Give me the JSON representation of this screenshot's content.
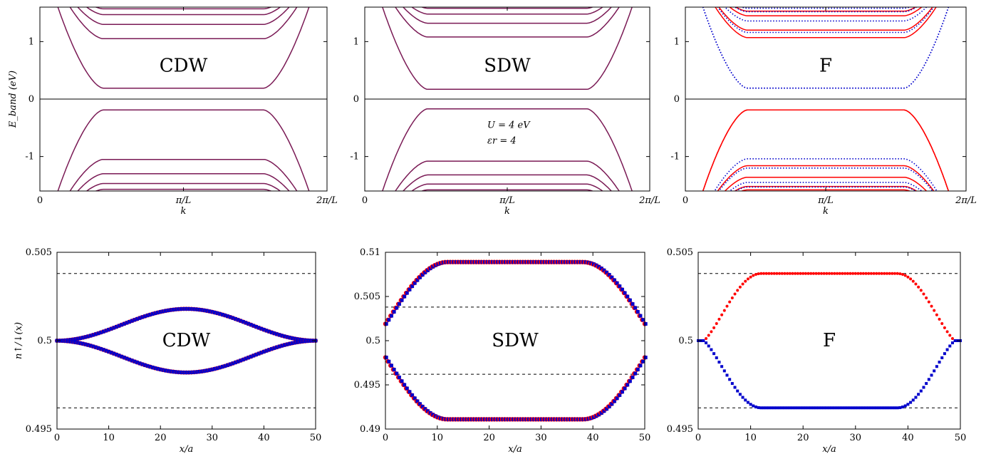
{
  "colors": {
    "red": "#ff0000",
    "blue": "#0000cc",
    "overlap": "#7a1a55",
    "axis": "#000000",
    "dashed": "#000000"
  },
  "panels": [
    {
      "id": "cdw-band",
      "chart_data": {
        "type": "line",
        "label": "CDW",
        "xlabel": "k",
        "ylabel": "E_band (eV)",
        "xticks": [
          "0",
          "π/L",
          "2π/L"
        ],
        "yticks": [
          "-1",
          "0",
          "1"
        ],
        "ylim": [
          -1.6,
          1.6
        ],
        "xlim": [
          0,
          1
        ],
        "zero_line": true,
        "series": [
          {
            "color": "overlap",
            "style": "solid",
            "bands": [
              {
                "sign": 1,
                "E": 0.19,
                "slope": 1.5
              },
              {
                "sign": 1,
                "E": 1.05,
                "slope": 1.5
              },
              {
                "sign": 1,
                "E": 1.3,
                "slope": 1.5
              },
              {
                "sign": 1,
                "E": 1.47,
                "slope": 1.5
              },
              {
                "sign": 1,
                "E": 1.57,
                "slope": 1.5
              },
              {
                "sign": -1,
                "E": 0.19,
                "slope": 1.5
              },
              {
                "sign": -1,
                "E": 1.05,
                "slope": 1.5
              },
              {
                "sign": -1,
                "E": 1.3,
                "slope": 1.5
              },
              {
                "sign": -1,
                "E": 1.47,
                "slope": 1.5
              },
              {
                "sign": -1,
                "E": 1.57,
                "slope": 1.5
              }
            ]
          }
        ]
      }
    },
    {
      "id": "sdw-band",
      "chart_data": {
        "type": "line",
        "label": "SDW",
        "annotations": [
          "U = 4 eV",
          "εr = 4"
        ],
        "xlabel": "k",
        "ylabel": "",
        "xticks": [
          "0",
          "π/L",
          "2π/L"
        ],
        "yticks": [
          "-1",
          "0",
          "1"
        ],
        "ylim": [
          -1.6,
          1.6
        ],
        "xlim": [
          0,
          1
        ],
        "zero_line": true,
        "series": [
          {
            "color": "overlap",
            "style": "solid",
            "bands": [
              {
                "sign": 1,
                "E": 0.17,
                "slope": 1.5
              },
              {
                "sign": 1,
                "E": 1.08,
                "slope": 1.5
              },
              {
                "sign": 1,
                "E": 1.32,
                "slope": 1.5
              },
              {
                "sign": 1,
                "E": 1.48,
                "slope": 1.5
              },
              {
                "sign": 1,
                "E": 1.58,
                "slope": 1.5
              },
              {
                "sign": -1,
                "E": 0.17,
                "slope": 1.5
              },
              {
                "sign": -1,
                "E": 1.08,
                "slope": 1.5
              },
              {
                "sign": -1,
                "E": 1.32,
                "slope": 1.5
              },
              {
                "sign": -1,
                "E": 1.48,
                "slope": 1.5
              },
              {
                "sign": -1,
                "E": 1.58,
                "slope": 1.5
              }
            ]
          }
        ]
      }
    },
    {
      "id": "f-band",
      "chart_data": {
        "type": "line",
        "label": "F",
        "xlabel": "k",
        "ylabel": "",
        "xticks": [
          "0",
          "π/L",
          "2π/L"
        ],
        "yticks": [
          "-1",
          "0",
          "1"
        ],
        "ylim": [
          -1.6,
          1.6
        ],
        "xlim": [
          0,
          1
        ],
        "zero_line": true,
        "series": [
          {
            "color": "red",
            "style": "solid",
            "bands": [
              {
                "sign": 1,
                "E": 1.07,
                "slope": 1.5
              },
              {
                "sign": 1,
                "E": 1.2,
                "slope": 1.5
              },
              {
                "sign": 1,
                "E": 1.45,
                "slope": 1.5
              },
              {
                "sign": 1,
                "E": 1.53,
                "slope": 1.5
              },
              {
                "sign": -1,
                "E": 0.19,
                "slope": 1.5
              },
              {
                "sign": -1,
                "E": 1.16,
                "slope": 1.5
              },
              {
                "sign": -1,
                "E": 1.36,
                "slope": 1.5
              },
              {
                "sign": -1,
                "E": 1.52,
                "slope": 1.5
              },
              {
                "sign": -1,
                "E": 1.58,
                "slope": 1.5
              },
              {
                "sign": 1,
                "E": -0.19,
                "slope": 1.5
              }
            ]
          },
          {
            "color": "blue",
            "style": "dotted",
            "bands": [
              {
                "sign": 1,
                "E": 0.19,
                "slope": 1.5
              },
              {
                "sign": 1,
                "E": 1.16,
                "slope": 1.5
              },
              {
                "sign": 1,
                "E": 1.36,
                "slope": 1.5
              },
              {
                "sign": 1,
                "E": 1.52,
                "slope": 1.5
              },
              {
                "sign": 1,
                "E": 1.58,
                "slope": 1.5
              },
              {
                "sign": -1,
                "E": 1.04,
                "slope": 1.5
              },
              {
                "sign": -1,
                "E": 1.2,
                "slope": 1.5
              },
              {
                "sign": -1,
                "E": 1.45,
                "slope": 1.5
              },
              {
                "sign": -1,
                "E": 1.53,
                "slope": 1.5
              },
              {
                "sign": -1,
                "E": -0.19,
                "slope": 1.5
              }
            ]
          }
        ]
      }
    },
    {
      "id": "cdw-density",
      "chart_data": {
        "type": "scatter",
        "label": "CDW",
        "xlabel": "x/a",
        "ylabel": "n↑/↓(x)",
        "xlim": [
          0,
          50
        ],
        "ylim": [
          0.495,
          0.505
        ],
        "xticks": [
          "0",
          "10",
          "20",
          "30",
          "40",
          "50"
        ],
        "yticks": [
          "0.495",
          "0.5",
          "0.505"
        ],
        "dashed_lines": [
          0.5038,
          0.4962
        ],
        "series": [
          {
            "name": "",
            "marker": "red-circle",
            "shape": "cdw",
            "amp": 0.0018,
            "values_note": ""
          },
          {
            "name": "",
            "marker": "blue-square",
            "shape": "cdw",
            "amp": 0.0018
          }
        ]
      }
    },
    {
      "id": "sdw-density",
      "chart_data": {
        "type": "scatter",
        "label": "SDW",
        "xlabel": "x/a",
        "ylabel": "",
        "xlim": [
          0,
          50
        ],
        "ylim": [
          0.49,
          0.51
        ],
        "xticks": [
          "0",
          "10",
          "20",
          "30",
          "40",
          "50"
        ],
        "yticks": [
          "0.49",
          "0.495",
          "0.5",
          "0.505",
          "0.51"
        ],
        "dashed_lines": [
          0.5038,
          0.4962
        ],
        "series": [
          {
            "name": "",
            "marker": "red-circle",
            "shape": "sdw",
            "amp": 0.0089
          },
          {
            "name": "",
            "marker": "blue-square",
            "shape": "sdw",
            "amp": 0.0089
          }
        ]
      }
    },
    {
      "id": "f-density",
      "chart_data": {
        "type": "scatter",
        "label": "F",
        "xlabel": "x/a",
        "ylabel": "",
        "xlim": [
          0,
          50
        ],
        "ylim": [
          0.495,
          0.505
        ],
        "xticks": [
          "0",
          "10",
          "20",
          "30",
          "40",
          "50"
        ],
        "yticks": [
          "0.495",
          "0.5",
          "0.505"
        ],
        "dashed_lines": [
          0.5038,
          0.4962
        ],
        "series": [
          {
            "name": "",
            "marker": "red-circle",
            "shape": "f-up",
            "amp": 0.0038
          },
          {
            "name": "",
            "marker": "blue-square",
            "shape": "f-down",
            "amp": 0.0038
          }
        ]
      }
    }
  ]
}
